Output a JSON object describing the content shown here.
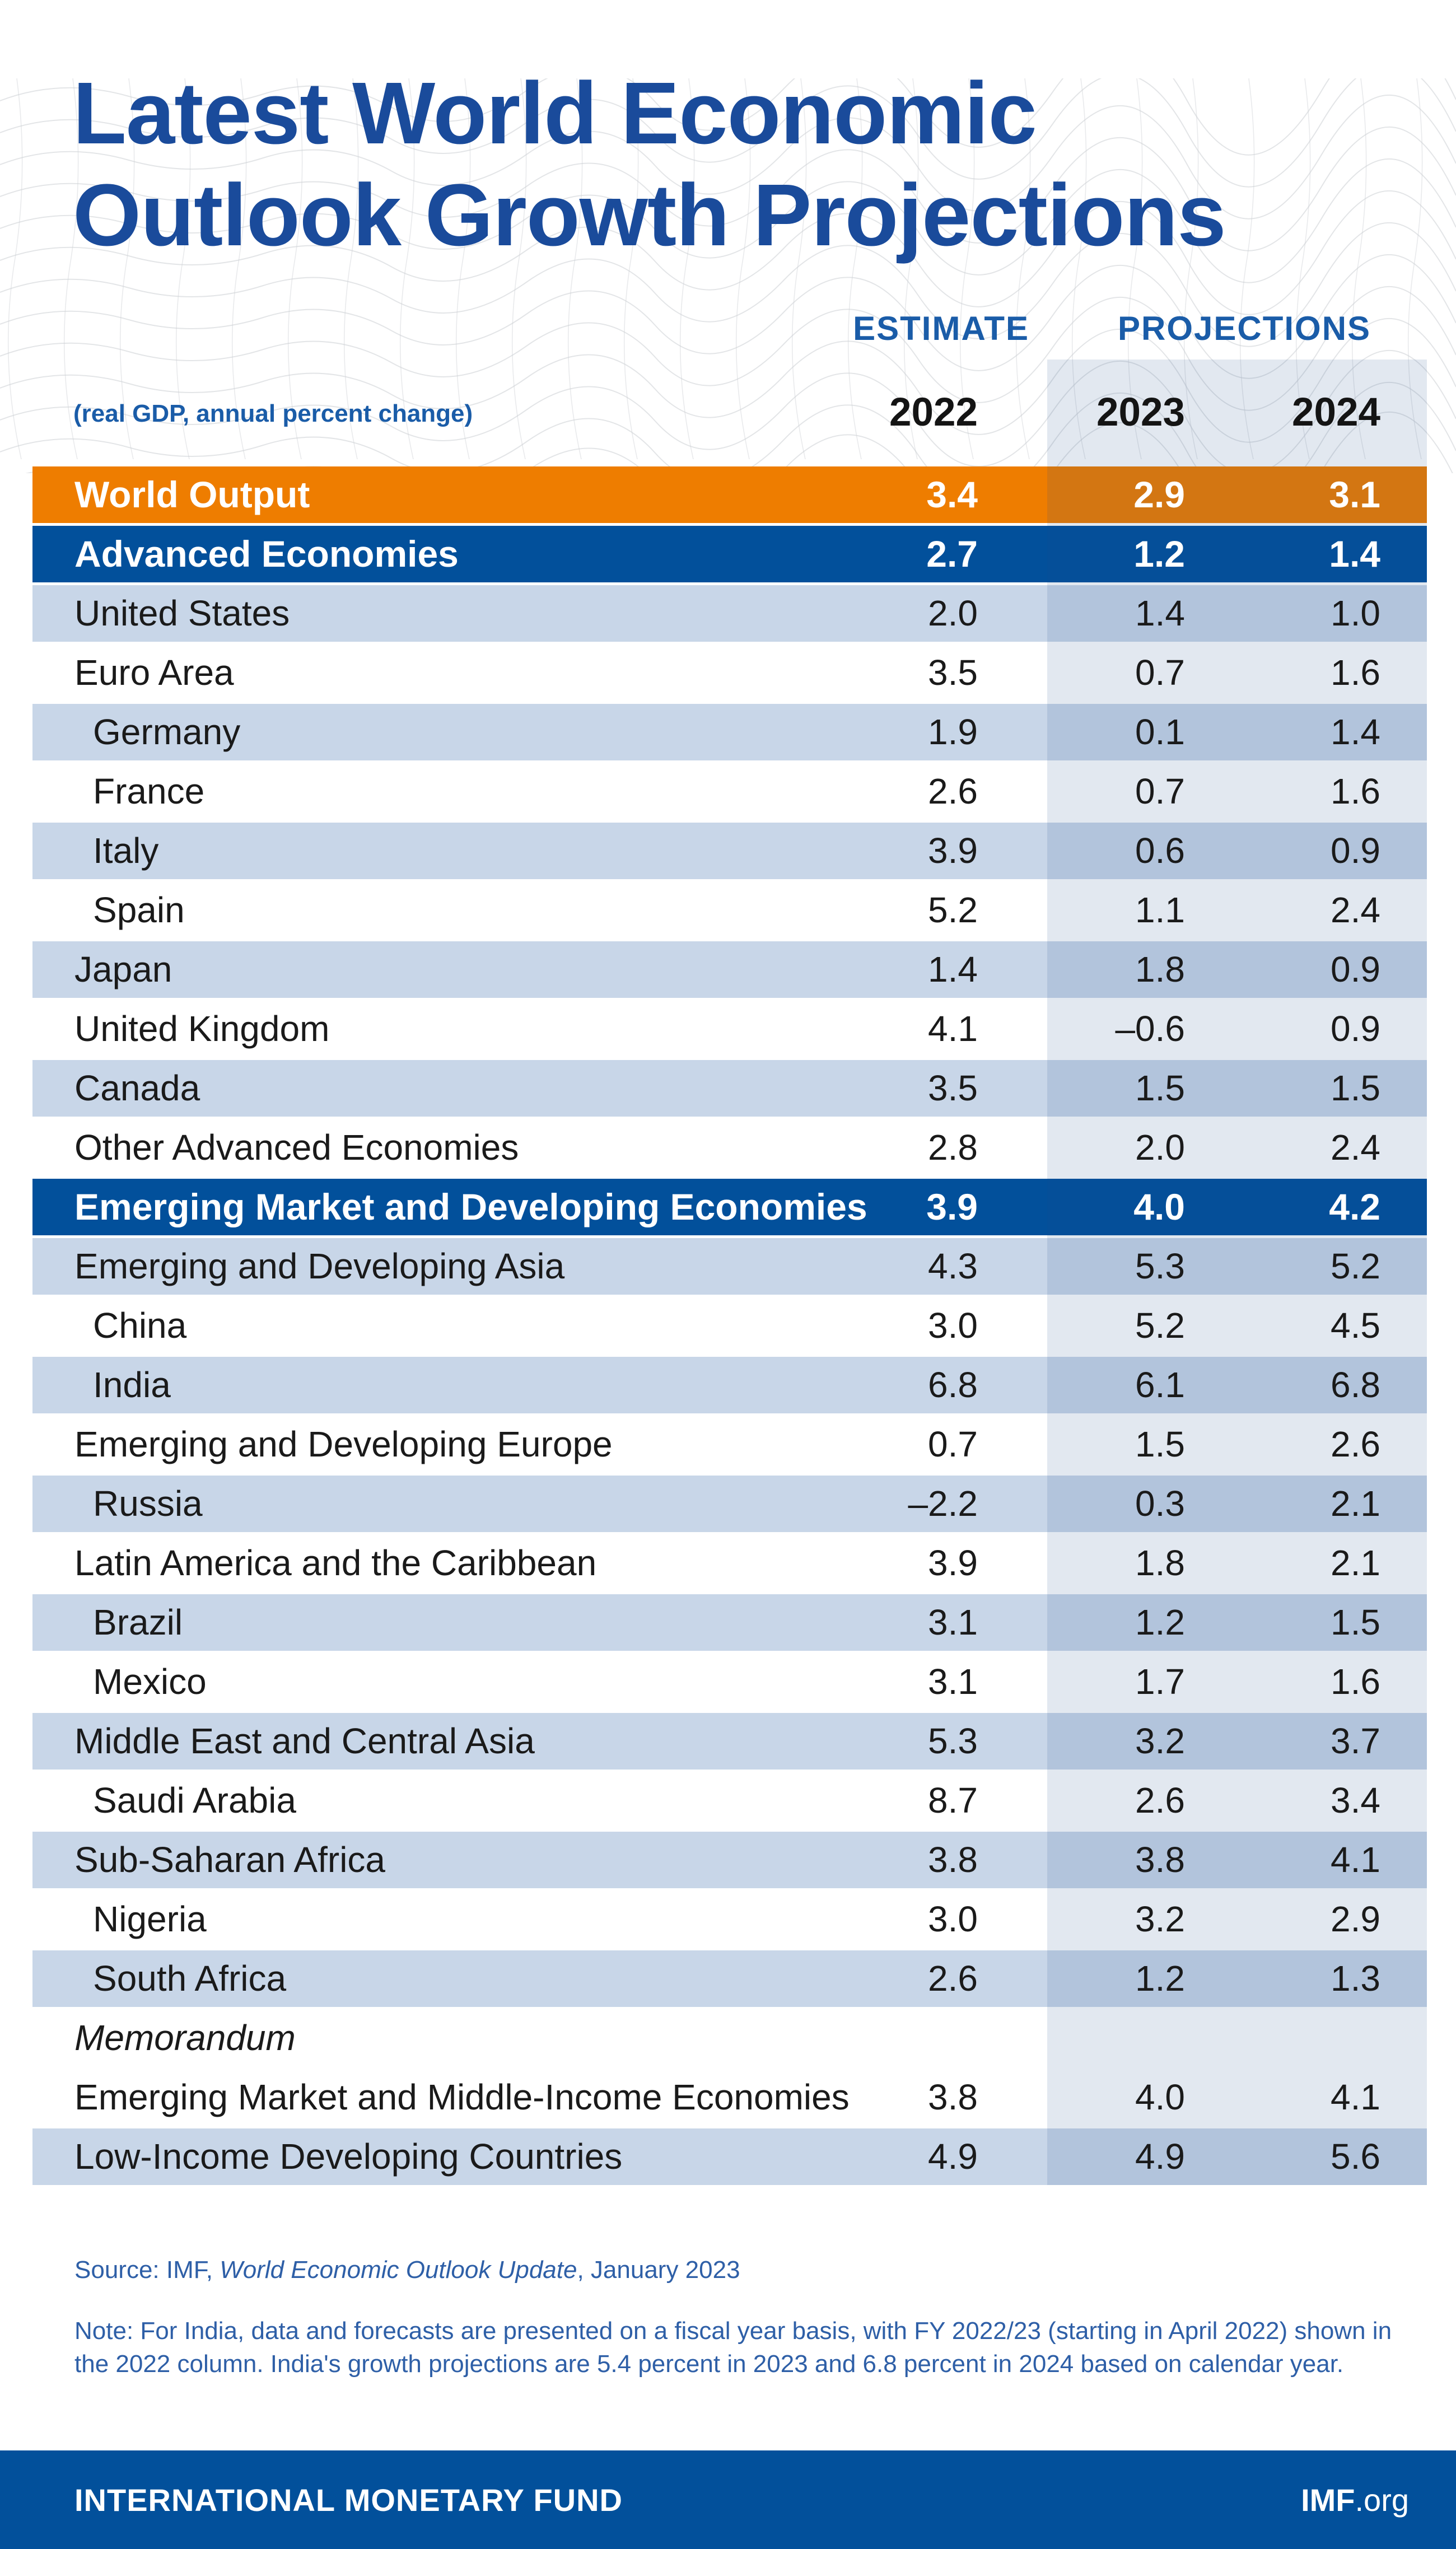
{
  "title": {
    "line1": "Latest World Economic",
    "line2": "Outlook Growth Projections"
  },
  "table": {
    "group_headers": {
      "estimate": "ESTIMATE",
      "projections": "PROJECTIONS"
    },
    "subtitle": "(real GDP, annual percent change)",
    "years": [
      "2022",
      "2023",
      "2024"
    ],
    "rows": [
      {
        "label": "World Output",
        "style": "world",
        "indent": false,
        "values": [
          "3.4",
          "2.9",
          "3.1"
        ]
      },
      {
        "label": "Advanced Economies",
        "style": "group",
        "indent": false,
        "values": [
          "2.7",
          "1.2",
          "1.4"
        ]
      },
      {
        "label": "United States",
        "style": "plain lb",
        "indent": false,
        "values": [
          "2.0",
          "1.4",
          "1.0"
        ]
      },
      {
        "label": "Euro Area",
        "style": "plain w",
        "indent": false,
        "values": [
          "3.5",
          "0.7",
          "1.6"
        ]
      },
      {
        "label": "Germany",
        "style": "plain lb",
        "indent": true,
        "values": [
          "1.9",
          "0.1",
          "1.4"
        ]
      },
      {
        "label": "France",
        "style": "plain w",
        "indent": true,
        "values": [
          "2.6",
          "0.7",
          "1.6"
        ]
      },
      {
        "label": "Italy",
        "style": "plain lb",
        "indent": true,
        "values": [
          "3.9",
          "0.6",
          "0.9"
        ]
      },
      {
        "label": "Spain",
        "style": "plain w",
        "indent": true,
        "values": [
          "5.2",
          "1.1",
          "2.4"
        ]
      },
      {
        "label": "Japan",
        "style": "plain lb",
        "indent": false,
        "values": [
          "1.4",
          "1.8",
          "0.9"
        ]
      },
      {
        "label": "United Kingdom",
        "style": "plain w",
        "indent": false,
        "values": [
          "4.1",
          "–0.6",
          "0.9"
        ]
      },
      {
        "label": "Canada",
        "style": "plain lb",
        "indent": false,
        "values": [
          "3.5",
          "1.5",
          "1.5"
        ]
      },
      {
        "label": "Other Advanced Economies",
        "style": "plain w",
        "indent": false,
        "values": [
          "2.8",
          "2.0",
          "2.4"
        ]
      },
      {
        "label": "Emerging Market and Developing Economies",
        "style": "group",
        "indent": false,
        "values": [
          "3.9",
          "4.0",
          "4.2"
        ]
      },
      {
        "label": "Emerging and Developing Asia",
        "style": "plain lb",
        "indent": false,
        "values": [
          "4.3",
          "5.3",
          "5.2"
        ]
      },
      {
        "label": "China",
        "style": "plain w",
        "indent": true,
        "values": [
          "3.0",
          "5.2",
          "4.5"
        ]
      },
      {
        "label": "India",
        "style": "plain lb",
        "indent": true,
        "values": [
          "6.8",
          "6.1",
          "6.8"
        ]
      },
      {
        "label": "Emerging and Developing Europe",
        "style": "plain w",
        "indent": false,
        "values": [
          "0.7",
          "1.5",
          "2.6"
        ]
      },
      {
        "label": "Russia",
        "style": "plain lb",
        "indent": true,
        "values": [
          "–2.2",
          "0.3",
          "2.1"
        ]
      },
      {
        "label": "Latin America and the Caribbean",
        "style": "plain w",
        "indent": false,
        "values": [
          "3.9",
          "1.8",
          "2.1"
        ]
      },
      {
        "label": "Brazil",
        "style": "plain lb",
        "indent": true,
        "values": [
          "3.1",
          "1.2",
          "1.5"
        ]
      },
      {
        "label": "Mexico",
        "style": "plain w",
        "indent": true,
        "values": [
          "3.1",
          "1.7",
          "1.6"
        ]
      },
      {
        "label": "Middle East and Central Asia",
        "style": "plain lb",
        "indent": false,
        "values": [
          "5.3",
          "3.2",
          "3.7"
        ]
      },
      {
        "label": "Saudi Arabia",
        "style": "plain w",
        "indent": true,
        "values": [
          "8.7",
          "2.6",
          "3.4"
        ]
      },
      {
        "label": "Sub-Saharan Africa",
        "style": "plain lb",
        "indent": false,
        "values": [
          "3.8",
          "3.8",
          "4.1"
        ]
      },
      {
        "label": "Nigeria",
        "style": "plain w",
        "indent": true,
        "values": [
          "3.0",
          "3.2",
          "2.9"
        ]
      },
      {
        "label": "South Africa",
        "style": "plain lb",
        "indent": true,
        "values": [
          "2.6",
          "1.2",
          "1.3"
        ]
      },
      {
        "label": "Memorandum",
        "style": "memo w",
        "indent": false,
        "values": []
      },
      {
        "label": "Emerging Market and Middle-Income Economies",
        "style": "plain w",
        "indent": false,
        "values": [
          "3.8",
          "4.0",
          "4.1"
        ]
      },
      {
        "label": "Low-Income Developing Countries",
        "style": "plain lb",
        "indent": false,
        "values": [
          "4.9",
          "4.9",
          "5.6"
        ]
      }
    ]
  },
  "source": {
    "prefix": "Source: IMF, ",
    "italic": "World Economic Outlook Update",
    "suffix": ", January 2023"
  },
  "note": "Note: For India, data and forecasts are presented on a fiscal year basis, with FY 2022/23 (starting in April 2022) shown in the 2022 column. India's growth projections are 5.4 percent in 2023 and 6.8 percent in 2024 based on calendar year.",
  "footer": {
    "org": "INTERNATIONAL MONETARY FUND",
    "brand_bold": "IMF",
    "brand_suffix": ".org"
  },
  "colors": {
    "title_blue": "#1A4B9B",
    "header_label_blue": "#1A5CA8",
    "world_output_orange": "#EE7D00",
    "group_row_blue": "#02509B",
    "alt_row_light_blue": "#C8D6E8",
    "projections_shade": "rgba(31,78,140,0.13)",
    "note_blue": "#2E5FA7",
    "footer_blue": "#02509B",
    "mesh_gray": "#CDD0D5"
  },
  "chart_data": {
    "type": "table",
    "title": "Latest World Economic Outlook Growth Projections",
    "subtitle": "(real GDP, annual percent change)",
    "column_groups": [
      {
        "label": "ESTIMATE",
        "columns": [
          "2022"
        ]
      },
      {
        "label": "PROJECTIONS",
        "columns": [
          "2023",
          "2024"
        ]
      }
    ],
    "columns": [
      "2022",
      "2023",
      "2024"
    ],
    "rows": [
      {
        "label": "World Output",
        "values": [
          3.4,
          2.9,
          3.1
        ]
      },
      {
        "label": "Advanced Economies",
        "values": [
          2.7,
          1.2,
          1.4
        ]
      },
      {
        "label": "United States",
        "values": [
          2.0,
          1.4,
          1.0
        ]
      },
      {
        "label": "Euro Area",
        "values": [
          3.5,
          0.7,
          1.6
        ]
      },
      {
        "label": "Germany",
        "values": [
          1.9,
          0.1,
          1.4
        ]
      },
      {
        "label": "France",
        "values": [
          2.6,
          0.7,
          1.6
        ]
      },
      {
        "label": "Italy",
        "values": [
          3.9,
          0.6,
          0.9
        ]
      },
      {
        "label": "Spain",
        "values": [
          5.2,
          1.1,
          2.4
        ]
      },
      {
        "label": "Japan",
        "values": [
          1.4,
          1.8,
          0.9
        ]
      },
      {
        "label": "United Kingdom",
        "values": [
          4.1,
          -0.6,
          0.9
        ]
      },
      {
        "label": "Canada",
        "values": [
          3.5,
          1.5,
          1.5
        ]
      },
      {
        "label": "Other Advanced Economies",
        "values": [
          2.8,
          2.0,
          2.4
        ]
      },
      {
        "label": "Emerging Market and Developing Economies",
        "values": [
          3.9,
          4.0,
          4.2
        ]
      },
      {
        "label": "Emerging and Developing Asia",
        "values": [
          4.3,
          5.3,
          5.2
        ]
      },
      {
        "label": "China",
        "values": [
          3.0,
          5.2,
          4.5
        ]
      },
      {
        "label": "India",
        "values": [
          6.8,
          6.1,
          6.8
        ]
      },
      {
        "label": "Emerging and Developing Europe",
        "values": [
          0.7,
          1.5,
          2.6
        ]
      },
      {
        "label": "Russia",
        "values": [
          -2.2,
          0.3,
          2.1
        ]
      },
      {
        "label": "Latin America and the Caribbean",
        "values": [
          3.9,
          1.8,
          2.1
        ]
      },
      {
        "label": "Brazil",
        "values": [
          3.1,
          1.2,
          1.5
        ]
      },
      {
        "label": "Mexico",
        "values": [
          3.1,
          1.7,
          1.6
        ]
      },
      {
        "label": "Middle East and Central Asia",
        "values": [
          5.3,
          3.2,
          3.7
        ]
      },
      {
        "label": "Saudi Arabia",
        "values": [
          8.7,
          2.6,
          3.4
        ]
      },
      {
        "label": "Sub-Saharan Africa",
        "values": [
          3.8,
          3.8,
          4.1
        ]
      },
      {
        "label": "Nigeria",
        "values": [
          3.0,
          3.2,
          2.9
        ]
      },
      {
        "label": "South Africa",
        "values": [
          2.6,
          1.2,
          1.3
        ]
      },
      {
        "label": "Memorandum",
        "values": [
          null,
          null,
          null
        ]
      },
      {
        "label": "Emerging Market and Middle-Income Economies",
        "values": [
          3.8,
          4.0,
          4.1
        ]
      },
      {
        "label": "Low-Income Developing Countries",
        "values": [
          4.9,
          4.9,
          5.6
        ]
      }
    ]
  }
}
